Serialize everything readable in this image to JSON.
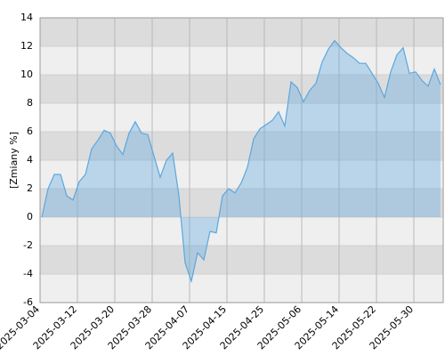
{
  "chart_data": {
    "type": "area",
    "y_label": "[Zmiany %]",
    "categories": [
      "2025-03-04",
      null,
      null,
      null,
      null,
      null,
      "2025-03-12",
      null,
      null,
      null,
      null,
      null,
      "2025-03-20",
      null,
      null,
      null,
      null,
      null,
      "2025-03-28",
      null,
      null,
      null,
      null,
      null,
      "2025-04-07",
      null,
      null,
      null,
      null,
      null,
      "2025-04-15",
      null,
      null,
      null,
      null,
      null,
      "2025-04-25",
      null,
      null,
      null,
      null,
      null,
      "2025-05-06",
      null,
      null,
      null,
      null,
      null,
      "2025-05-14",
      null,
      null,
      null,
      null,
      null,
      "2025-05-22",
      null,
      null,
      null,
      null,
      null,
      "2025-05-30",
      null,
      null,
      null,
      null
    ],
    "values": [
      0,
      2.0,
      3.0,
      3.0,
      1.5,
      1.2,
      2.5,
      3.0,
      4.8,
      5.4,
      6.1,
      5.9,
      5.0,
      4.4,
      5.9,
      6.7,
      5.9,
      5.8,
      4.3,
      2.8,
      4.0,
      4.5,
      1.5,
      -3.2,
      -4.5,
      -2.5,
      -3.0,
      -1.0,
      -1.1,
      1.5,
      2.0,
      1.7,
      2.4,
      3.5,
      5.5,
      6.2,
      6.5,
      6.8,
      7.4,
      6.4,
      9.5,
      9.1,
      8.1,
      8.9,
      9.4,
      10.9,
      11.8,
      12.4,
      11.9,
      11.5,
      11.2,
      10.8,
      10.8,
      10.1,
      9.4,
      8.4,
      10.2,
      11.4,
      11.9,
      10.1,
      10.2,
      9.6,
      9.2,
      10.4,
      9.3
    ],
    "color": "#5aa7e0",
    "ylim": [
      -6,
      14
    ],
    "yticks": [
      -6,
      -4,
      -2,
      0,
      2,
      4,
      6,
      8,
      10,
      12,
      14
    ],
    "grid": true
  }
}
